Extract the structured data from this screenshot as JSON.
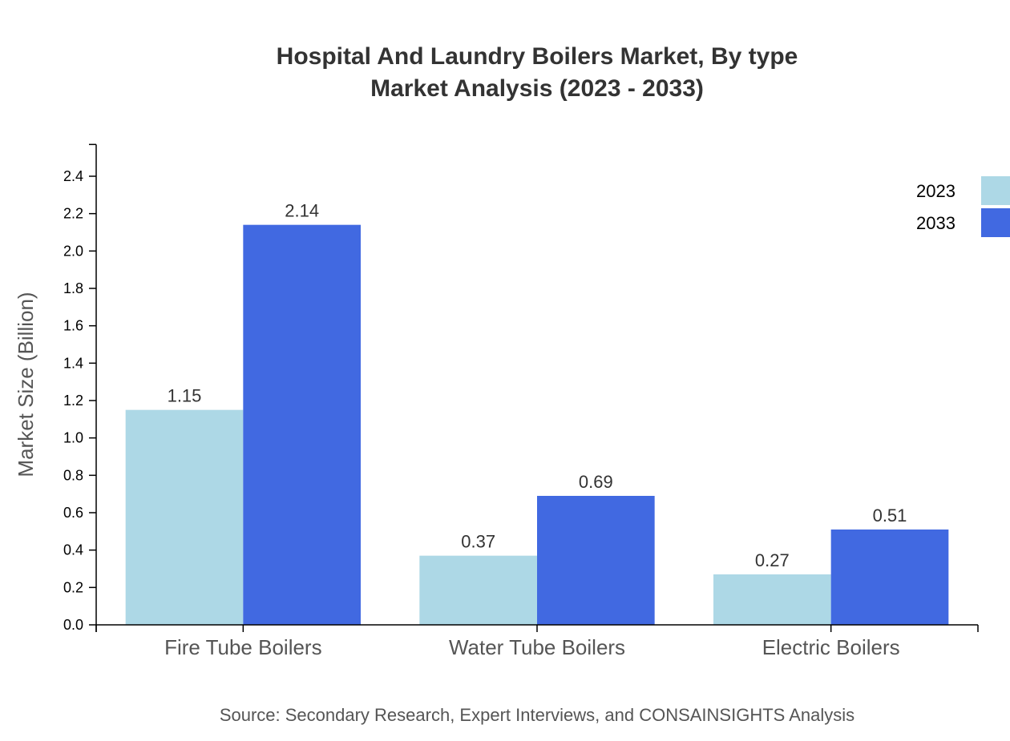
{
  "chart_data": {
    "type": "bar",
    "title": "Hospital And Laundry Boilers Market, By type",
    "subtitle": "Market Analysis (2023 - 2033)",
    "xlabel": "",
    "ylabel": "Market Size (Billion)",
    "categories": [
      "Fire Tube Boilers",
      "Water Tube Boilers",
      "Electric Boilers"
    ],
    "series": [
      {
        "name": "2023",
        "color": "#ADD8E6",
        "values": [
          1.15,
          0.37,
          0.27
        ]
      },
      {
        "name": "2033",
        "color": "#4169E1",
        "values": [
          2.14,
          0.69,
          0.51
        ]
      }
    ],
    "yticks": [
      "0.0",
      "0.2",
      "0.4",
      "0.6",
      "0.8",
      "1.0",
      "1.2",
      "1.4",
      "1.6",
      "1.8",
      "2.0",
      "2.2",
      "2.4"
    ],
    "ylim": [
      0,
      2.57
    ],
    "grid": false,
    "legend_position": "top-right",
    "source": "Source: Secondary Research, Expert Interviews, and CONSAINSIGHTS Analysis"
  }
}
